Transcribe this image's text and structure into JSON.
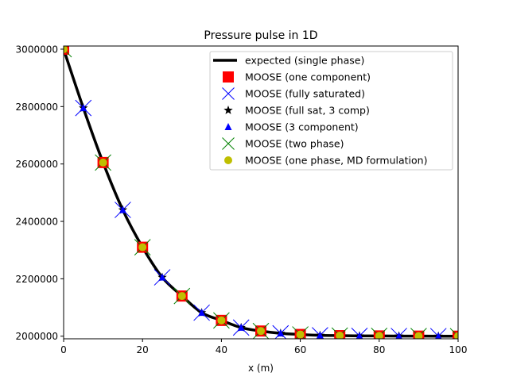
{
  "chart_data": {
    "type": "line",
    "title": "Pressure pulse in 1D",
    "xlabel": "x (m)",
    "ylabel": "",
    "xlim": [
      0,
      100
    ],
    "ylim": [
      1991000,
      3011000
    ],
    "xticks": [
      0,
      20,
      40,
      60,
      80,
      100
    ],
    "yticks": [
      2000000,
      2200000,
      2400000,
      2600000,
      2800000,
      3000000
    ],
    "xtick_labels": [
      "0",
      "20",
      "40",
      "60",
      "80",
      "100"
    ],
    "ytick_labels": [
      "2000000",
      "2200000",
      "2400000",
      "2600000",
      "2800000",
      "3000000"
    ],
    "grid": false,
    "legend_position": "top-right",
    "series": [
      {
        "name": "expected (single phase)",
        "style": "line",
        "color": "#000000",
        "x": [
          0,
          5,
          10,
          15,
          20,
          25,
          30,
          35,
          40,
          45,
          50,
          55,
          60,
          65,
          70,
          75,
          80,
          85,
          90,
          95,
          100
        ],
        "y": [
          3000000,
          2795000,
          2605000,
          2440000,
          2310000,
          2205000,
          2140000,
          2082000,
          2055000,
          2030000,
          2018000,
          2010000,
          2006000,
          2003000,
          2002000,
          2001000,
          2001000,
          2000500,
          2000300,
          2000100,
          2000000
        ]
      },
      {
        "name": "MOOSE (one component)",
        "style": "square",
        "color": "#ff0000",
        "x": [
          0,
          10,
          20,
          30,
          40,
          50,
          60,
          70,
          80,
          90,
          100
        ],
        "y": [
          3000000,
          2605000,
          2310000,
          2140000,
          2055000,
          2018000,
          2006000,
          2002000,
          2001000,
          2000300,
          2000000
        ]
      },
      {
        "name": "MOOSE (fully saturated)",
        "style": "x",
        "color": "#0000ff",
        "x": [
          5,
          15,
          25,
          35,
          45,
          55,
          65,
          75,
          85,
          95
        ],
        "y": [
          2795000,
          2440000,
          2205000,
          2082000,
          2030000,
          2010000,
          2003000,
          2001000,
          2000500,
          2000100
        ]
      },
      {
        "name": "MOOSE (full sat, 3 comp)",
        "style": "star",
        "color": "#000000",
        "x": [
          5,
          15,
          25,
          35,
          45,
          55,
          65,
          75,
          85,
          95
        ],
        "y": [
          2795000,
          2440000,
          2205000,
          2082000,
          2030000,
          2010000,
          2003000,
          2001000,
          2000500,
          2000100
        ]
      },
      {
        "name": "MOOSE (3 component)",
        "style": "triangle",
        "color": "#0000ff",
        "x": [
          5,
          15,
          25,
          35,
          45,
          55,
          65,
          75,
          85,
          95
        ],
        "y": [
          2795000,
          2440000,
          2205000,
          2082000,
          2030000,
          2010000,
          2003000,
          2001000,
          2000500,
          2000100
        ]
      },
      {
        "name": "MOOSE (two phase)",
        "style": "x",
        "color": "#008000",
        "x": [
          0,
          10,
          20,
          30,
          40,
          50,
          60,
          70,
          80,
          90,
          100
        ],
        "y": [
          3000000,
          2605000,
          2310000,
          2140000,
          2055000,
          2018000,
          2006000,
          2002000,
          2001000,
          2000300,
          2000000
        ]
      },
      {
        "name": "MOOSE (one phase, MD formulation)",
        "style": "circle",
        "color": "#bfbf00",
        "x": [
          0,
          10,
          20,
          30,
          40,
          50,
          60,
          70,
          80,
          90,
          100
        ],
        "y": [
          3000000,
          2605000,
          2310000,
          2140000,
          2055000,
          2018000,
          2006000,
          2002000,
          2001000,
          2000300,
          2000000
        ]
      }
    ]
  }
}
